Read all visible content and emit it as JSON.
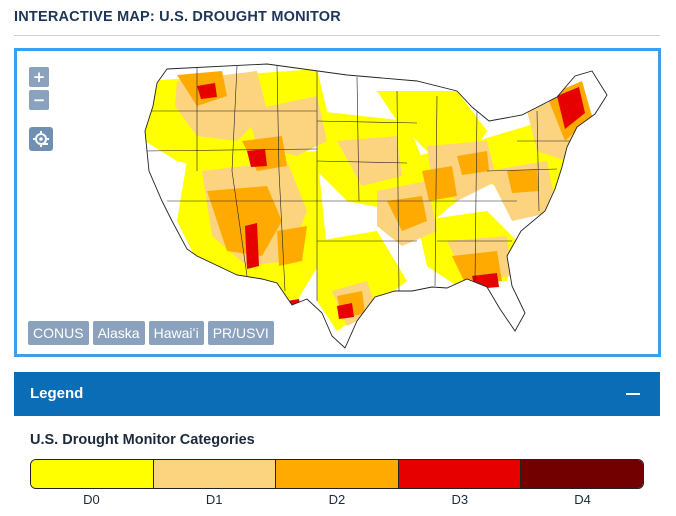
{
  "header": {
    "title": "INTERACTIVE MAP: U.S. DROUGHT MONITOR"
  },
  "map": {
    "zoom_in_label": "+",
    "zoom_out_label": "−",
    "reset_icon": "reset-view-icon",
    "regions": [
      "CONUS",
      "Alaska",
      "Hawaiʻi",
      "PR/USVI"
    ],
    "border_color": "#3aa0ee"
  },
  "legend": {
    "header_label": "Legend",
    "collapse_icon": "minus-icon",
    "categories_title": "U.S. Drought Monitor Categories",
    "categories": [
      {
        "label": "D0",
        "color": "#ffff00"
      },
      {
        "label": "D1",
        "color": "#fcd37f"
      },
      {
        "label": "D2",
        "color": "#ffaa00"
      },
      {
        "label": "D3",
        "color": "#e60000"
      },
      {
        "label": "D4",
        "color": "#730000"
      }
    ]
  }
}
